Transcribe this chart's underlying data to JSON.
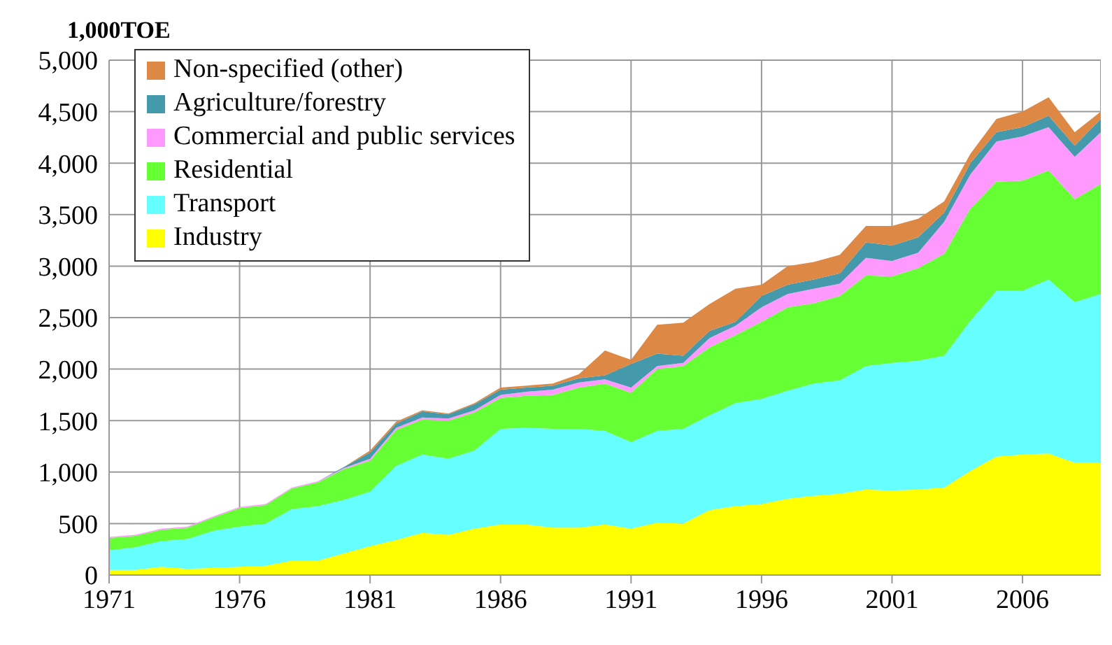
{
  "chart_data": {
    "type": "area",
    "stacked": true,
    "ylabel": "1,000TOE",
    "x": [
      1971,
      1972,
      1973,
      1974,
      1975,
      1976,
      1977,
      1978,
      1979,
      1980,
      1981,
      1982,
      1983,
      1984,
      1985,
      1986,
      1987,
      1988,
      1989,
      1990,
      1991,
      1992,
      1993,
      1994,
      1995,
      1996,
      1997,
      1998,
      1999,
      2000,
      2001,
      2002,
      2003,
      2004,
      2005,
      2006,
      2007,
      2008,
      2009
    ],
    "series": [
      {
        "name": "Industry",
        "color": "#ffff00",
        "values": [
          50,
          50,
          80,
          60,
          70,
          80,
          90,
          140,
          140,
          210,
          280,
          340,
          410,
          390,
          450,
          490,
          490,
          460,
          460,
          490,
          450,
          510,
          500,
          630,
          670,
          690,
          740,
          770,
          790,
          830,
          820,
          830,
          850,
          1010,
          1150,
          1170,
          1180,
          1090,
          1090
        ]
      },
      {
        "name": "Transport",
        "color": "#66ffff",
        "values": [
          190,
          220,
          250,
          290,
          360,
          390,
          410,
          500,
          530,
          520,
          530,
          720,
          760,
          740,
          760,
          930,
          940,
          960,
          960,
          910,
          840,
          890,
          920,
          920,
          1000,
          1020,
          1050,
          1090,
          1100,
          1200,
          1240,
          1250,
          1280,
          1460,
          1610,
          1590,
          1690,
          1560,
          1640
        ]
      },
      {
        "name": "Residential",
        "color": "#66ff33",
        "values": [
          120,
          110,
          110,
          110,
          130,
          180,
          180,
          200,
          230,
          300,
          300,
          350,
          340,
          370,
          370,
          300,
          310,
          330,
          400,
          460,
          480,
          600,
          610,
          660,
          660,
          750,
          810,
          780,
          820,
          880,
          840,
          900,
          990,
          1090,
          1060,
          1070,
          1060,
          1000,
          1070
        ]
      },
      {
        "name": "Commercial and public services",
        "color": "#ff99ff",
        "values": [
          10,
          10,
          10,
          10,
          10,
          10,
          10,
          10,
          10,
          10,
          20,
          20,
          20,
          20,
          20,
          30,
          40,
          50,
          50,
          40,
          50,
          30,
          30,
          90,
          90,
          140,
          130,
          140,
          120,
          170,
          150,
          150,
          310,
          330,
          390,
          430,
          420,
          410,
          500
        ]
      },
      {
        "name": "Agriculture/forestry",
        "color": "#4499aa",
        "values": [
          0,
          0,
          0,
          0,
          0,
          0,
          0,
          0,
          0,
          10,
          60,
          40,
          60,
          40,
          60,
          50,
          40,
          40,
          40,
          40,
          230,
          120,
          70,
          70,
          40,
          110,
          90,
          90,
          100,
          150,
          150,
          150,
          90,
          110,
          90,
          90,
          110,
          110,
          130
        ]
      },
      {
        "name": "Non-specified (other)",
        "color": "#dd8844",
        "values": [
          0,
          0,
          0,
          0,
          0,
          0,
          0,
          0,
          0,
          0,
          20,
          20,
          10,
          10,
          10,
          20,
          20,
          20,
          40,
          240,
          40,
          280,
          320,
          260,
          320,
          110,
          180,
          170,
          180,
          160,
          190,
          180,
          110,
          90,
          130,
          150,
          180,
          130,
          70
        ]
      }
    ],
    "xlim": [
      1971,
      2009
    ],
    "xticks": [
      1971,
      1976,
      1981,
      1986,
      1991,
      1996,
      2001,
      2006
    ],
    "ylim": [
      0,
      5000
    ],
    "yticks": [
      0,
      500,
      {
        "value": 1000,
        "label": "1,000"
      },
      {
        "value": 1500,
        "label": "1,500"
      },
      {
        "value": 2000,
        "label": "2,000"
      },
      {
        "value": 2500,
        "label": "2,500"
      },
      {
        "value": 3000,
        "label": "3,000"
      },
      {
        "value": 3500,
        "label": "3,500"
      },
      {
        "value": 4000,
        "label": "4,000"
      },
      {
        "value": 4500,
        "label": "4,500"
      },
      {
        "value": 5000,
        "label": "5,000"
      }
    ],
    "grid": true,
    "legend": "top left"
  }
}
